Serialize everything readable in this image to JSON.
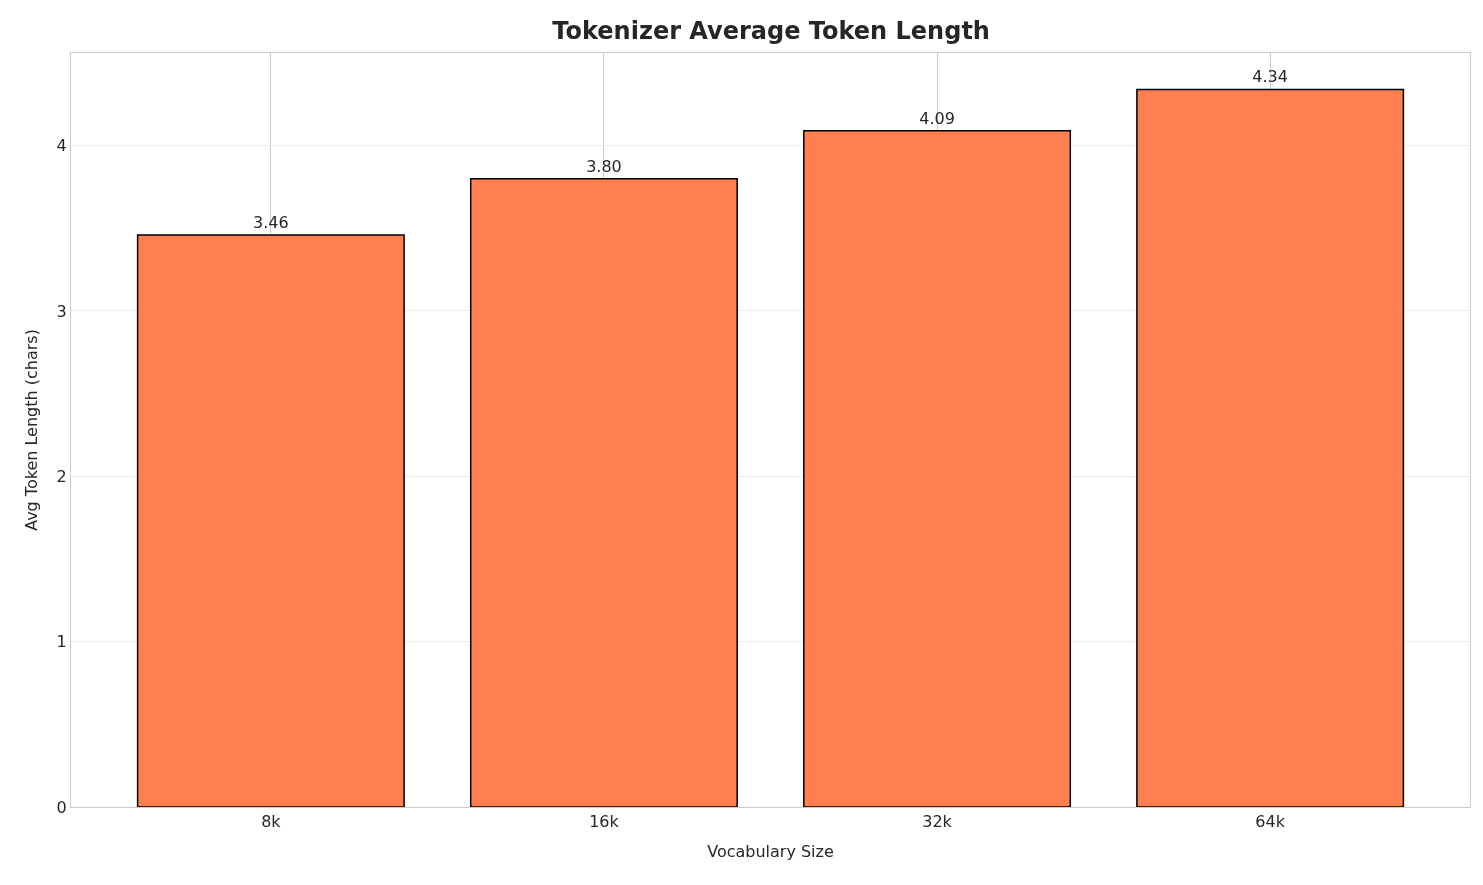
{
  "chart_data": {
    "type": "bar",
    "title": "Tokenizer Average Token Length",
    "xlabel": "Vocabulary Size",
    "ylabel": "Avg Token Length (chars)",
    "categories": [
      "8k",
      "16k",
      "32k",
      "64k"
    ],
    "values": [
      3.46,
      3.8,
      4.09,
      4.34
    ],
    "value_labels": [
      "3.46",
      "3.80",
      "4.09",
      "4.34"
    ],
    "color": "#ff7f50",
    "ylim": [
      0,
      4.56
    ],
    "yticks": [
      0,
      1,
      2,
      3,
      4
    ],
    "grid": true
  }
}
